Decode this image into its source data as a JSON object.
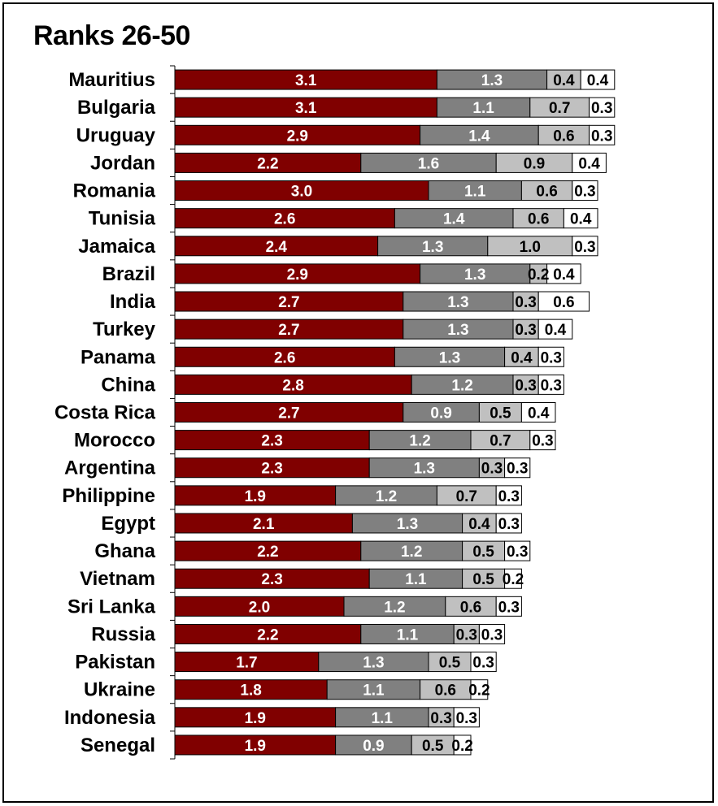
{
  "chart_data": {
    "type": "bar",
    "stacked": true,
    "orientation": "horizontal",
    "title": "Ranks 26-50",
    "xlabel": "",
    "ylabel": "",
    "xlim": [
      0,
      6.3
    ],
    "grid": false,
    "legend": "none",
    "categories": [
      "Mauritius",
      "Bulgaria",
      "Uruguay",
      "Jordan",
      "Romania",
      "Tunisia",
      "Jamaica",
      "Brazil",
      "India",
      "Turkey",
      "Panama",
      "China",
      "Costa Rica",
      "Morocco",
      "Argentina",
      "Philippine",
      "Egypt",
      "Ghana",
      "Vietnam",
      "Sri Lanka",
      "Russia",
      "Pakistan",
      "Ukraine",
      "Indonesia",
      "Senegal"
    ],
    "series": [
      {
        "color": "#800000",
        "label_color": "#ffffff",
        "values": [
          3.1,
          3.1,
          2.9,
          2.2,
          3.0,
          2.6,
          2.4,
          2.9,
          2.7,
          2.7,
          2.6,
          2.8,
          2.7,
          2.3,
          2.3,
          1.9,
          2.1,
          2.2,
          2.3,
          2.0,
          2.2,
          1.7,
          1.8,
          1.9,
          1.9
        ],
        "labels": [
          "3.1",
          "3.1",
          "2.9",
          "2.2",
          "3.0",
          "2.6",
          "2.4",
          "2.9",
          "2.7",
          "2.7",
          "2.6",
          "2.8",
          "2.7",
          "2.3",
          "2.3",
          "1.9",
          "2.1",
          "2.2",
          "2.3",
          "2.0",
          "2.2",
          "1.7",
          "1.8",
          "1.9",
          "1.9"
        ]
      },
      {
        "color": "#808080",
        "label_color": "#ffffff",
        "values": [
          1.3,
          1.1,
          1.4,
          1.6,
          1.1,
          1.4,
          1.3,
          1.3,
          1.3,
          1.3,
          1.3,
          1.2,
          0.9,
          1.2,
          1.3,
          1.2,
          1.3,
          1.2,
          1.1,
          1.2,
          1.1,
          1.3,
          1.1,
          1.1,
          0.9
        ],
        "labels": [
          "1.3",
          "1.1",
          "1.4",
          "1.6",
          "1.1",
          "1.4",
          "1.3",
          "1.3",
          "1.3",
          "1.3",
          "1.3",
          "1.2",
          "0.9",
          "1.2",
          "1.3",
          "1.2",
          "1.3",
          "1.2",
          "1.1",
          "1.2",
          "1.1",
          "1.3",
          "1.1",
          "1.1",
          "0.9"
        ]
      },
      {
        "color": "#c0c0c0",
        "label_color": "#000000",
        "values": [
          0.4,
          0.7,
          0.6,
          0.9,
          0.6,
          0.6,
          1.0,
          0.2,
          0.3,
          0.3,
          0.4,
          0.3,
          0.5,
          0.7,
          0.3,
          0.7,
          0.4,
          0.5,
          0.5,
          0.6,
          0.3,
          0.5,
          0.6,
          0.3,
          0.5
        ],
        "labels": [
          "0.4",
          "0.7",
          "0.6",
          "0.9",
          "0.6",
          "0.6",
          "1.0",
          "0.2",
          "0.3",
          "0.3",
          "0.4",
          "0.3",
          "0.5",
          "0.7",
          "0.3",
          "0.7",
          "0.4",
          "0.5",
          "0.5",
          "0.6",
          "0.3",
          "0.5",
          "0.6",
          "0.3",
          "0.5"
        ]
      },
      {
        "color": "#ffffff",
        "label_color": "#000000",
        "values": [
          0.4,
          0.3,
          0.3,
          0.4,
          0.3,
          0.4,
          0.3,
          0.4,
          0.6,
          0.4,
          0.3,
          0.3,
          0.4,
          0.3,
          0.3,
          0.3,
          0.3,
          0.3,
          0.2,
          0.3,
          0.3,
          0.3,
          0.2,
          0.3,
          0.2
        ],
        "labels": [
          "0.4",
          "0.3",
          "0.3",
          "0.4",
          "0.3",
          "0.4",
          "0.3",
          "0.4",
          "0.6",
          "0.4",
          "0.3",
          "0.3",
          "0.4",
          "0.3",
          "0.3",
          "0.3",
          "0.3",
          "0.3",
          "0.2",
          "0.3",
          "0.3",
          "0.3",
          "0.2",
          "0.3",
          "0.2"
        ]
      }
    ]
  }
}
